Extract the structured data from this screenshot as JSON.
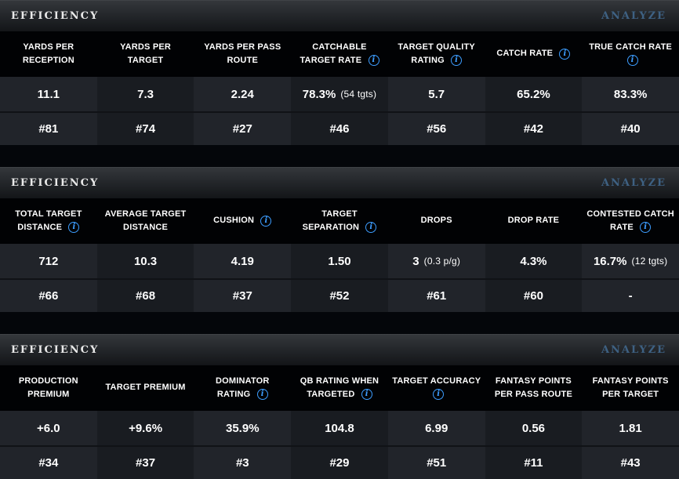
{
  "icons": {
    "info_glyph": "i"
  },
  "colors": {
    "info_icon_blue": "#3d9dff",
    "analyze_link_blue": "#3e6183",
    "stripe_light": "#21242a",
    "stripe_dark": "#191c21",
    "header_text": "#ffffff"
  },
  "sections": [
    {
      "title": "EFFICIENCY",
      "analyze_label": "ANALYZE",
      "columns": [
        {
          "label": "YARDS PER RECEPTION",
          "value": "11.1",
          "rank": "#81"
        },
        {
          "label": "YARDS PER TARGET",
          "value": "7.3",
          "rank": "#74"
        },
        {
          "label": "YARDS PER PASS ROUTE",
          "value": "2.24",
          "rank": "#27"
        },
        {
          "label": "CATCHABLE TARGET RATE",
          "value": "78.3%",
          "note": "(54 tgts)",
          "rank": "#46"
        },
        {
          "label": "TARGET QUALITY RATING",
          "value": "5.7",
          "rank": "#56"
        },
        {
          "label": "CATCH RATE",
          "value": "65.2%",
          "rank": "#42"
        },
        {
          "label": "TRUE CATCH RATE",
          "value": "83.3%",
          "rank": "#40"
        }
      ]
    },
    {
      "title": "EFFICIENCY",
      "analyze_label": "ANALYZE",
      "columns": [
        {
          "label": "TOTAL TARGET DISTANCE",
          "value": "712",
          "rank": "#66"
        },
        {
          "label": "AVERAGE TARGET DISTANCE",
          "value": "10.3",
          "rank": "#68"
        },
        {
          "label": "CUSHION",
          "value": "4.19",
          "rank": "#37"
        },
        {
          "label": "TARGET SEPARATION",
          "value": "1.50",
          "rank": "#52"
        },
        {
          "label": "DROPS",
          "value": "3",
          "note": "(0.3 p/g)",
          "rank": "#61"
        },
        {
          "label": "DROP RATE",
          "value": "4.3%",
          "rank": "#60"
        },
        {
          "label": "CONTESTED CATCH RATE",
          "value": "16.7%",
          "note": "(12 tgts)",
          "rank": "-"
        }
      ]
    },
    {
      "title": "EFFICIENCY",
      "analyze_label": "ANALYZE",
      "columns": [
        {
          "label": "PRODUCTION PREMIUM",
          "value": "+6.0",
          "rank": "#34"
        },
        {
          "label": "TARGET PREMIUM",
          "value": "+9.6%",
          "rank": "#37"
        },
        {
          "label": "DOMINATOR RATING",
          "value": "35.9%",
          "rank": "#3"
        },
        {
          "label": "QB RATING WHEN TARGETED",
          "value": "104.8",
          "rank": "#29"
        },
        {
          "label": "TARGET ACCURACY",
          "value": "6.99",
          "rank": "#51"
        },
        {
          "label": "FANTASY POINTS PER PASS ROUTE",
          "value": "0.56",
          "rank": "#11"
        },
        {
          "label": "FANTASY POINTS PER TARGET",
          "value": "1.81",
          "rank": "#43"
        }
      ]
    }
  ]
}
